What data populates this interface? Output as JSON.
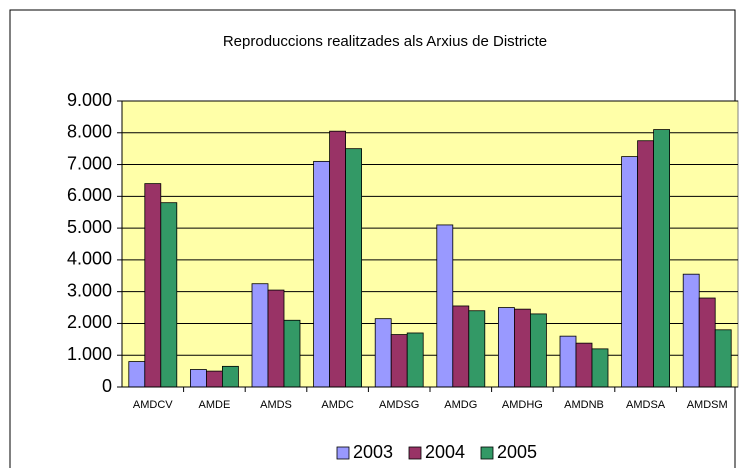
{
  "chart_data": {
    "type": "bar",
    "title": "Reproduccions realitzades als Arxius de Districte",
    "categories": [
      "AMDCV",
      "AMDE",
      "AMDS",
      "AMDC",
      "AMDSG",
      "AMDG",
      "AMDHG",
      "AMDNB",
      "AMDSA",
      "AMDSM"
    ],
    "series": [
      {
        "name": "2003",
        "color": "#9999ff",
        "values": [
          800,
          550,
          3250,
          7100,
          2150,
          5100,
          2500,
          1600,
          7250,
          3550
        ]
      },
      {
        "name": "2004",
        "color": "#993366",
        "values": [
          6400,
          500,
          3050,
          8050,
          1650,
          2550,
          2450,
          1380,
          7750,
          2800
        ]
      },
      {
        "name": "2005",
        "color": "#339966",
        "values": [
          5800,
          650,
          2100,
          7500,
          1700,
          2400,
          2300,
          1200,
          8100,
          1800
        ]
      }
    ],
    "ylim": [
      0,
      9000
    ],
    "yticks": [
      0,
      {
        "value": 1000,
        "label": "1.000"
      },
      {
        "value": 2000,
        "label": "2.000"
      },
      {
        "value": 3000,
        "label": "3.000"
      },
      {
        "value": 4000,
        "label": "4.000"
      },
      {
        "value": 5000,
        "label": "5.000"
      },
      {
        "value": 6000,
        "label": "6.000"
      },
      {
        "value": 7000,
        "label": "7.000"
      },
      {
        "value": 8000,
        "label": "8.000"
      },
      {
        "value": 9000,
        "label": "9.000"
      }
    ],
    "grid": true,
    "legend": "bottom",
    "background": "#ffffa8"
  }
}
